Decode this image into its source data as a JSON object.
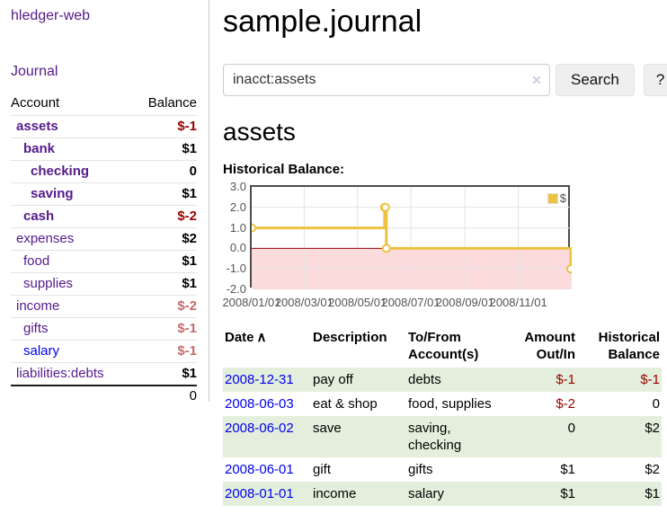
{
  "app": {
    "title": "hledger-web",
    "nav_journal": "Journal"
  },
  "sidebar": {
    "accounts_header": {
      "account": "Account",
      "balance": "Balance"
    },
    "accounts": [
      {
        "name": "assets",
        "depth": 0,
        "bold": true,
        "balance": "$-1",
        "balance_color": "negative"
      },
      {
        "name": "bank",
        "depth": 1,
        "bold": true,
        "balance": "$1",
        "balance_color": "normal"
      },
      {
        "name": "checking",
        "depth": 2,
        "bold": true,
        "balance": "0",
        "balance_color": "normal"
      },
      {
        "name": "saving",
        "depth": 2,
        "bold": true,
        "balance": "$1",
        "balance_color": "normal"
      },
      {
        "name": "cash",
        "depth": 1,
        "bold": true,
        "balance": "$-2",
        "balance_color": "negative"
      },
      {
        "name": "expenses",
        "depth": 0,
        "bold": false,
        "balance": "$2",
        "balance_color": "normal"
      },
      {
        "name": "food",
        "depth": 1,
        "bold": false,
        "balance": "$1",
        "balance_color": "normal"
      },
      {
        "name": "supplies",
        "depth": 1,
        "bold": false,
        "balance": "$1",
        "balance_color": "normal"
      },
      {
        "name": "income",
        "depth": 0,
        "bold": false,
        "balance": "$-2",
        "balance_color": "muted-negative"
      },
      {
        "name": "gifts",
        "depth": 1,
        "bold": false,
        "balance": "$-1",
        "balance_color": "muted-negative"
      },
      {
        "name": "salary",
        "depth": 1,
        "bold": false,
        "balance": "$-1",
        "balance_color": "muted-negative",
        "link_color": "blue"
      },
      {
        "name": "liabilities:debts",
        "depth": 0,
        "bold": false,
        "balance": "$1",
        "balance_color": "normal"
      }
    ],
    "total": "0"
  },
  "header": {
    "title": "sample.journal"
  },
  "search": {
    "value": "inacct:assets",
    "clear_icon": "✕",
    "button_label": "Search",
    "help_label": "?"
  },
  "account_page": {
    "heading": "assets",
    "chart_label": "Historical Balance:"
  },
  "chart_data": {
    "type": "line",
    "title": "Historical Balance",
    "step_style": "step-after",
    "x": [
      "2008-01-01",
      "2008-06-01",
      "2008-06-02",
      "2008-06-03",
      "2008-12-31"
    ],
    "x_days": [
      0,
      152,
      153,
      154,
      365
    ],
    "series": [
      {
        "name": "$",
        "values": [
          1,
          2,
          2,
          0,
          -1
        ],
        "color": "#EDC240"
      }
    ],
    "xlim_days": [
      0,
      366
    ],
    "ylim": [
      -2,
      3
    ],
    "y_ticks": [
      {
        "label": "3.0",
        "value": 3
      },
      {
        "label": "2.0",
        "value": 2
      },
      {
        "label": "1.0",
        "value": 1
      },
      {
        "label": "0.0",
        "value": 0
      },
      {
        "label": "-1.0",
        "value": -1
      },
      {
        "label": "-2.0",
        "value": -2
      }
    ],
    "x_ticks": [
      {
        "label": "2008/01/01",
        "day": 0
      },
      {
        "label": "2008/03/01",
        "day": 60
      },
      {
        "label": "2008/05/01",
        "day": 121
      },
      {
        "label": "2008/07/01",
        "day": 182
      },
      {
        "label": "2008/09/01",
        "day": 244
      },
      {
        "label": "2008/11/01",
        "day": 305
      }
    ],
    "grid": true,
    "legend_position": "top-right",
    "legend": {
      "label": "$",
      "color": "#EDC240"
    },
    "negative_region_color": "#FBDBDB",
    "zero_line_color": "#990000",
    "gridline_color": "#e3e3e3"
  },
  "register": {
    "columns": {
      "date": "Date",
      "sort_icon": "∧",
      "description": "Description",
      "accounts": "To/From Account(s)",
      "amount": "Amount Out/In",
      "balance": "Historical Balance"
    },
    "rows": [
      {
        "date": "2008-12-31",
        "description": "pay off",
        "accounts": "debts",
        "amount": "$-1",
        "amount_negative": true,
        "balance": "$-1",
        "balance_negative": true
      },
      {
        "date": "2008-06-03",
        "description": "eat & shop",
        "accounts": "food, supplies",
        "amount": "$-2",
        "amount_negative": true,
        "balance": "0",
        "balance_negative": false
      },
      {
        "date": "2008-06-02",
        "description": "save",
        "accounts": "saving, checking",
        "amount": "0",
        "amount_negative": false,
        "balance": "$2",
        "balance_negative": false
      },
      {
        "date": "2008-06-01",
        "description": "gift",
        "accounts": "gifts",
        "amount": "$1",
        "amount_negative": false,
        "balance": "$2",
        "balance_negative": false
      },
      {
        "date": "2008-01-01",
        "description": "income",
        "accounts": "salary",
        "amount": "$1",
        "amount_negative": false,
        "balance": "$1",
        "balance_negative": false
      }
    ]
  },
  "colors": {
    "link_purple": "#551A8B",
    "link_blue": "#0000EE",
    "negative_red": "#990000",
    "muted_negative": "#C46C6C",
    "row_green": "#E3EFDC",
    "series_yellow": "#EDC240"
  }
}
